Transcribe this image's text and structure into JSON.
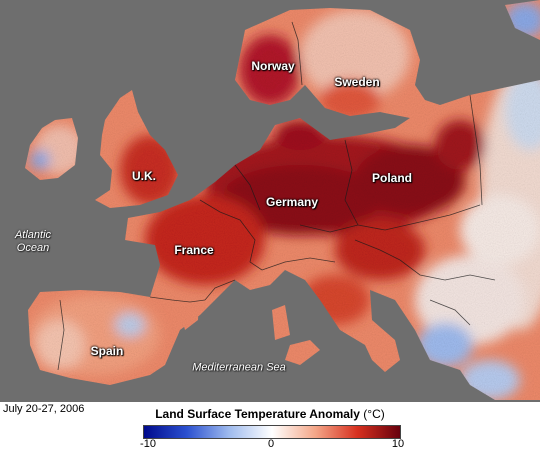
{
  "date": "July 20-27, 2006",
  "legend": {
    "title": "Land Surface Temperature Anomaly",
    "unit": "(°C)",
    "min_label": "-10",
    "mid_label": "0",
    "max_label": "10",
    "range": [
      -10,
      10
    ],
    "colors": [
      "#000a8c",
      "#2b50d0",
      "#9fbbee",
      "#ffffff",
      "#f4a88a",
      "#d7301f",
      "#67000d"
    ]
  },
  "places": {
    "norway": "Norway",
    "sweden": "Sweden",
    "uk": "U.K.",
    "poland": "Poland",
    "germany": "Germany",
    "france": "France",
    "spain": "Spain"
  },
  "seas": {
    "atlantic_line1": "Atlantic",
    "atlantic_line2": "Ocean",
    "mediterranean": "Mediterranean Sea"
  },
  "colors": {
    "water": "#6e6e6e",
    "border": "#1a1a1a"
  }
}
